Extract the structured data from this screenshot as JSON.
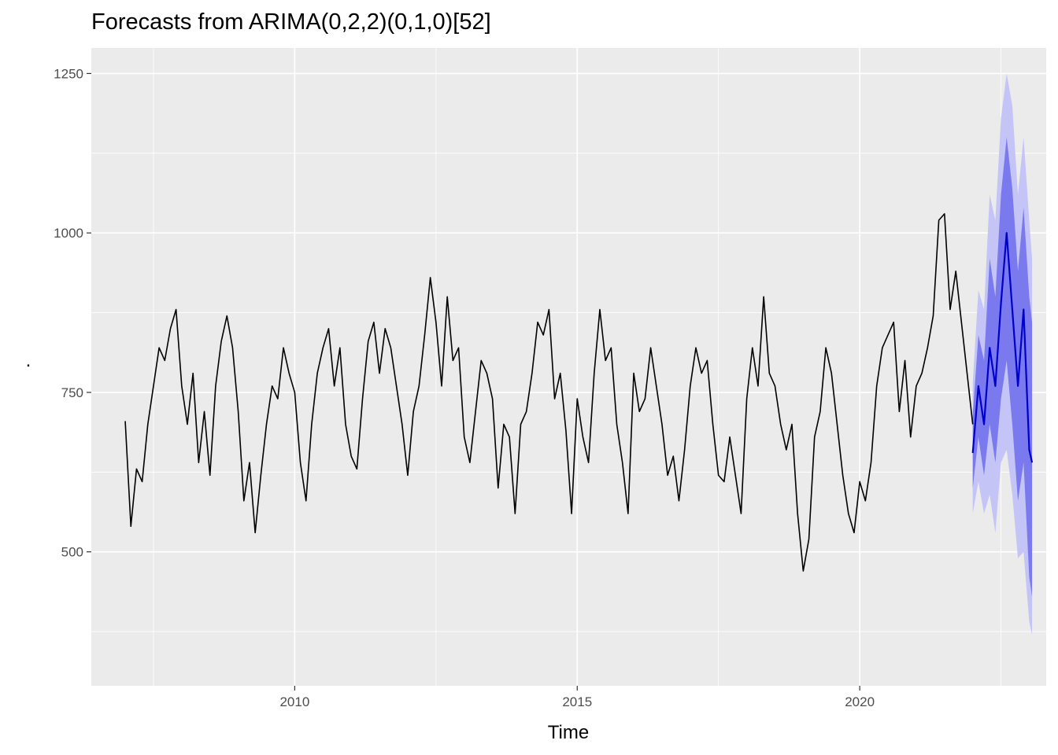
{
  "chart_data": {
    "type": "line",
    "title": "Forecasts from ARIMA(0,2,2)(0,1,0)[52]",
    "xlabel": "Time",
    "ylabel": ".",
    "xlim": [
      2006.4,
      2023.3
    ],
    "ylim": [
      290,
      1290
    ],
    "x_ticks": [
      2010,
      2015,
      2020
    ],
    "x_tick_labels": [
      "2010",
      "2015",
      "2020"
    ],
    "y_ticks": [
      500,
      750,
      1000,
      1250
    ],
    "y_tick_labels": [
      "500",
      "750",
      "1000",
      "1250"
    ],
    "grid": true,
    "legend": "none",
    "colors": {
      "panel": "#ebebeb",
      "grid": "#ffffff",
      "history": "#000000",
      "forecast": "#0000cc",
      "pi80": "#7a7aee",
      "pi95": "#c4c4f7"
    },
    "series": [
      {
        "role": "history",
        "x": [
          2007.0,
          2007.1,
          2007.2,
          2007.3,
          2007.4,
          2007.5,
          2007.6,
          2007.7,
          2007.8,
          2007.9,
          2008.0,
          2008.1,
          2008.2,
          2008.3,
          2008.4,
          2008.5,
          2008.6,
          2008.7,
          2008.8,
          2008.9,
          2009.0,
          2009.1,
          2009.2,
          2009.3,
          2009.4,
          2009.5,
          2009.6,
          2009.7,
          2009.8,
          2009.9,
          2010.0,
          2010.1,
          2010.2,
          2010.3,
          2010.4,
          2010.5,
          2010.6,
          2010.7,
          2010.8,
          2010.9,
          2011.0,
          2011.1,
          2011.2,
          2011.3,
          2011.4,
          2011.5,
          2011.6,
          2011.7,
          2011.8,
          2011.9,
          2012.0,
          2012.1,
          2012.2,
          2012.3,
          2012.4,
          2012.5,
          2012.6,
          2012.7,
          2012.8,
          2012.9,
          2013.0,
          2013.1,
          2013.2,
          2013.3,
          2013.4,
          2013.5,
          2013.6,
          2013.7,
          2013.8,
          2013.9,
          2014.0,
          2014.1,
          2014.2,
          2014.3,
          2014.4,
          2014.5,
          2014.6,
          2014.7,
          2014.8,
          2014.9,
          2015.0,
          2015.1,
          2015.2,
          2015.3,
          2015.4,
          2015.5,
          2015.6,
          2015.7,
          2015.8,
          2015.9,
          2016.0,
          2016.1,
          2016.2,
          2016.3,
          2016.4,
          2016.5,
          2016.6,
          2016.7,
          2016.8,
          2016.9,
          2017.0,
          2017.1,
          2017.2,
          2017.3,
          2017.4,
          2017.5,
          2017.6,
          2017.7,
          2017.8,
          2017.9,
          2018.0,
          2018.1,
          2018.2,
          2018.3,
          2018.4,
          2018.5,
          2018.6,
          2018.7,
          2018.8,
          2018.9,
          2019.0,
          2019.1,
          2019.2,
          2019.3,
          2019.4,
          2019.5,
          2019.6,
          2019.7,
          2019.8,
          2019.9,
          2020.0,
          2020.1,
          2020.2,
          2020.3,
          2020.4,
          2020.5,
          2020.6,
          2020.7,
          2020.8,
          2020.9,
          2021.0,
          2021.1,
          2021.2,
          2021.3,
          2021.4,
          2021.5,
          2021.6,
          2021.7,
          2021.8,
          2021.9,
          2022.0
        ],
        "y": [
          705,
          540,
          630,
          610,
          700,
          760,
          820,
          800,
          850,
          880,
          760,
          700,
          780,
          640,
          720,
          620,
          760,
          830,
          870,
          820,
          720,
          580,
          640,
          530,
          620,
          700,
          760,
          740,
          820,
          780,
          750,
          640,
          580,
          700,
          780,
          820,
          850,
          760,
          820,
          700,
          650,
          630,
          740,
          830,
          860,
          780,
          850,
          820,
          760,
          700,
          620,
          720,
          760,
          840,
          930,
          860,
          760,
          900,
          800,
          820,
          680,
          640,
          720,
          800,
          780,
          740,
          600,
          700,
          680,
          560,
          700,
          720,
          780,
          860,
          840,
          880,
          740,
          780,
          690,
          560,
          740,
          680,
          640,
          780,
          880,
          800,
          820,
          700,
          640,
          560,
          780,
          720,
          740,
          820,
          760,
          700,
          620,
          650,
          580,
          660,
          760,
          820,
          780,
          800,
          700,
          620,
          610,
          680,
          620,
          560,
          740,
          820,
          760,
          900,
          780,
          760,
          700,
          660,
          700,
          560,
          470,
          520,
          680,
          720,
          820,
          780,
          700,
          620,
          560,
          530,
          610,
          580,
          640,
          760,
          820,
          840,
          860,
          720,
          800,
          680,
          760,
          780,
          820,
          870,
          1020,
          1030,
          880,
          940,
          860,
          780,
          700
        ]
      },
      {
        "role": "forecast",
        "x": [
          2022.0,
          2022.1,
          2022.2,
          2022.3,
          2022.4,
          2022.5,
          2022.6,
          2022.7,
          2022.8,
          2022.9,
          2023.0,
          2023.05
        ],
        "y": [
          655,
          760,
          700,
          820,
          760,
          890,
          1000,
          880,
          760,
          880,
          660,
          640
        ],
        "lo80": [
          600,
          680,
          620,
          700,
          640,
          740,
          800,
          700,
          580,
          640,
          460,
          430
        ],
        "hi80": [
          715,
          840,
          800,
          960,
          900,
          1060,
          1150,
          1070,
          940,
          1040,
          900,
          860
        ],
        "lo95": [
          560,
          610,
          560,
          590,
          530,
          640,
          660,
          590,
          490,
          500,
          390,
          370
        ],
        "hi95": [
          765,
          910,
          880,
          1060,
          1020,
          1180,
          1250,
          1200,
          1060,
          1150,
          1020,
          960
        ]
      }
    ]
  }
}
